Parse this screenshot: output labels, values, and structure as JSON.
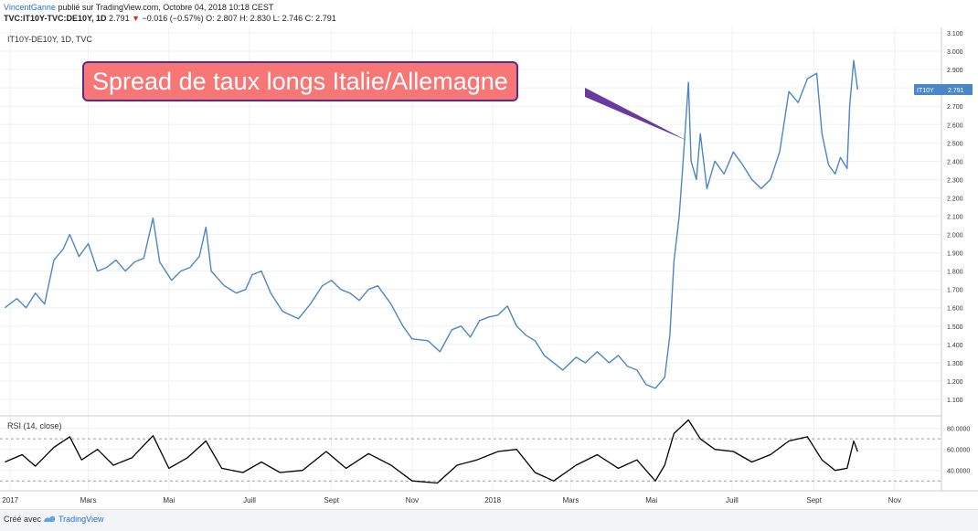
{
  "header": {
    "author": "VincentGanne",
    "published": "publié sur TradingView.com, Octobre 04, 2018 10:18 CEST",
    "symbol": "TVC:IT10Y-TVC:DE10Y, 1D",
    "last": "2.791",
    "change": "−0.016 (−0.57%)",
    "ohlc": "O: 2.807  H: 2.830  L: 2.746  C: 2.791"
  },
  "annotation": "Spread de taux longs Italie/Allemagne",
  "footer": {
    "made_with": "Créé avec",
    "brand": "TradingView"
  },
  "colors": {
    "price_line": "#4b86c6",
    "rsi_line": "#000000",
    "badge": "#4b86c6",
    "callout_fill": "#f77777",
    "callout_border": "#5a2a8f",
    "arrow": "#6a3aa0"
  },
  "chart_data": [
    {
      "type": "line",
      "title": "IT10Y-DE10Y, 1D, TVC",
      "series": [
        {
          "name": "IT10Y",
          "last_label": "2.791",
          "points": [
            [
              "2016-12-28",
              1.6
            ],
            [
              "2017-01-06",
              1.65
            ],
            [
              "2017-01-13",
              1.6
            ],
            [
              "2017-01-20",
              1.68
            ],
            [
              "2017-01-27",
              1.62
            ],
            [
              "2017-02-03",
              1.86
            ],
            [
              "2017-02-10",
              1.92
            ],
            [
              "2017-02-15",
              2.0
            ],
            [
              "2017-02-22",
              1.88
            ],
            [
              "2017-03-01",
              1.95
            ],
            [
              "2017-03-08",
              1.8
            ],
            [
              "2017-03-15",
              1.82
            ],
            [
              "2017-03-22",
              1.86
            ],
            [
              "2017-03-29",
              1.8
            ],
            [
              "2017-04-05",
              1.85
            ],
            [
              "2017-04-12",
              1.87
            ],
            [
              "2017-04-19",
              2.09
            ],
            [
              "2017-04-24",
              1.85
            ],
            [
              "2017-05-03",
              1.75
            ],
            [
              "2017-05-10",
              1.8
            ],
            [
              "2017-05-17",
              1.82
            ],
            [
              "2017-05-24",
              1.88
            ],
            [
              "2017-05-29",
              2.04
            ],
            [
              "2017-06-02",
              1.8
            ],
            [
              "2017-06-12",
              1.72
            ],
            [
              "2017-06-21",
              1.68
            ],
            [
              "2017-06-28",
              1.7
            ],
            [
              "2017-07-03",
              1.78
            ],
            [
              "2017-07-10",
              1.8
            ],
            [
              "2017-07-17",
              1.68
            ],
            [
              "2017-07-26",
              1.58
            ],
            [
              "2017-08-07",
              1.54
            ],
            [
              "2017-08-16",
              1.62
            ],
            [
              "2017-08-25",
              1.72
            ],
            [
              "2017-09-01",
              1.75
            ],
            [
              "2017-09-08",
              1.7
            ],
            [
              "2017-09-15",
              1.68
            ],
            [
              "2017-09-22",
              1.64
            ],
            [
              "2017-09-29",
              1.7
            ],
            [
              "2017-10-06",
              1.72
            ],
            [
              "2017-10-16",
              1.62
            ],
            [
              "2017-10-25",
              1.5
            ],
            [
              "2017-11-01",
              1.43
            ],
            [
              "2017-11-13",
              1.42
            ],
            [
              "2017-11-22",
              1.36
            ],
            [
              "2017-12-01",
              1.48
            ],
            [
              "2017-12-08",
              1.5
            ],
            [
              "2017-12-15",
              1.44
            ],
            [
              "2017-12-22",
              1.53
            ],
            [
              "2017-12-29",
              1.55
            ],
            [
              "2018-01-05",
              1.56
            ],
            [
              "2018-01-12",
              1.61
            ],
            [
              "2018-01-19",
              1.5
            ],
            [
              "2018-01-26",
              1.45
            ],
            [
              "2018-02-02",
              1.42
            ],
            [
              "2018-02-09",
              1.34
            ],
            [
              "2018-02-16",
              1.3
            ],
            [
              "2018-02-23",
              1.26
            ],
            [
              "2018-03-05",
              1.33
            ],
            [
              "2018-03-12",
              1.3
            ],
            [
              "2018-03-21",
              1.36
            ],
            [
              "2018-03-30",
              1.3
            ],
            [
              "2018-04-06",
              1.34
            ],
            [
              "2018-04-13",
              1.28
            ],
            [
              "2018-04-20",
              1.26
            ],
            [
              "2018-04-27",
              1.18
            ],
            [
              "2018-05-04",
              1.16
            ],
            [
              "2018-05-11",
              1.22
            ],
            [
              "2018-05-15",
              1.45
            ],
            [
              "2018-05-18",
              1.85
            ],
            [
              "2018-05-22",
              2.1
            ],
            [
              "2018-05-25",
              2.4
            ],
            [
              "2018-05-29",
              2.83
            ],
            [
              "2018-05-31",
              2.4
            ],
            [
              "2018-06-04",
              2.3
            ],
            [
              "2018-06-07",
              2.55
            ],
            [
              "2018-06-12",
              2.25
            ],
            [
              "2018-06-18",
              2.4
            ],
            [
              "2018-06-25",
              2.33
            ],
            [
              "2018-07-02",
              2.45
            ],
            [
              "2018-07-09",
              2.38
            ],
            [
              "2018-07-16",
              2.3
            ],
            [
              "2018-07-23",
              2.25
            ],
            [
              "2018-07-30",
              2.3
            ],
            [
              "2018-08-06",
              2.45
            ],
            [
              "2018-08-13",
              2.78
            ],
            [
              "2018-08-20",
              2.72
            ],
            [
              "2018-08-27",
              2.85
            ],
            [
              "2018-09-03",
              2.88
            ],
            [
              "2018-09-07",
              2.55
            ],
            [
              "2018-09-12",
              2.38
            ],
            [
              "2018-09-17",
              2.33
            ],
            [
              "2018-09-21",
              2.42
            ],
            [
              "2018-09-26",
              2.36
            ],
            [
              "2018-09-28",
              2.7
            ],
            [
              "2018-10-01",
              2.95
            ],
            [
              "2018-10-04",
              2.791
            ]
          ]
        }
      ],
      "y_ticks": [
        "1.100",
        "1.200",
        "1.300",
        "1.400",
        "1.500",
        "1.600",
        "1.700",
        "1.800",
        "1.900",
        "2.000",
        "2.100",
        "2.200",
        "2.300",
        "2.400",
        "2.500",
        "2.600",
        "2.700",
        "2.800",
        "2.900",
        "3.000",
        "3.100"
      ],
      "ylim": [
        1.05,
        3.12
      ],
      "x_ticks": [
        {
          "date": "2017-01-01",
          "label": "2017"
        },
        {
          "date": "2017-03-01",
          "label": "Mars"
        },
        {
          "date": "2017-05-01",
          "label": "Mai"
        },
        {
          "date": "2017-07-01",
          "label": "Juill"
        },
        {
          "date": "2017-09-01",
          "label": "Sept"
        },
        {
          "date": "2017-11-01",
          "label": "Nov"
        },
        {
          "date": "2018-01-01",
          "label": "2018"
        },
        {
          "date": "2018-03-01",
          "label": "Mars"
        },
        {
          "date": "2018-05-01",
          "label": "Mai"
        },
        {
          "date": "2018-07-01",
          "label": "Juill"
        },
        {
          "date": "2018-09-01",
          "label": "Sept"
        },
        {
          "date": "2018-11-01",
          "label": "Nov"
        }
      ],
      "xlim": [
        "2016-12-27",
        "2018-12-05"
      ],
      "grid": true
    },
    {
      "type": "line",
      "title": "RSI (14, close)",
      "series": [
        {
          "name": "RSI",
          "points": [
            [
              "2016-12-28",
              48
            ],
            [
              "2017-01-10",
              55
            ],
            [
              "2017-01-20",
              44
            ],
            [
              "2017-02-03",
              62
            ],
            [
              "2017-02-15",
              72
            ],
            [
              "2017-02-24",
              50
            ],
            [
              "2017-03-08",
              60
            ],
            [
              "2017-03-20",
              45
            ],
            [
              "2017-04-03",
              52
            ],
            [
              "2017-04-19",
              73
            ],
            [
              "2017-05-01",
              42
            ],
            [
              "2017-05-15",
              52
            ],
            [
              "2017-05-29",
              68
            ],
            [
              "2017-06-10",
              42
            ],
            [
              "2017-06-26",
              38
            ],
            [
              "2017-07-10",
              48
            ],
            [
              "2017-07-24",
              38
            ],
            [
              "2017-08-10",
              40
            ],
            [
              "2017-08-28",
              58
            ],
            [
              "2017-09-12",
              42
            ],
            [
              "2017-09-29",
              56
            ],
            [
              "2017-10-16",
              45
            ],
            [
              "2017-11-01",
              30
            ],
            [
              "2017-11-20",
              28
            ],
            [
              "2017-12-05",
              45
            ],
            [
              "2017-12-20",
              50
            ],
            [
              "2018-01-05",
              58
            ],
            [
              "2018-01-19",
              60
            ],
            [
              "2018-02-02",
              38
            ],
            [
              "2018-02-16",
              30
            ],
            [
              "2018-03-05",
              45
            ],
            [
              "2018-03-21",
              55
            ],
            [
              "2018-04-06",
              42
            ],
            [
              "2018-04-20",
              50
            ],
            [
              "2018-05-04",
              30
            ],
            [
              "2018-05-11",
              45
            ],
            [
              "2018-05-18",
              75
            ],
            [
              "2018-05-29",
              88
            ],
            [
              "2018-06-07",
              70
            ],
            [
              "2018-06-18",
              60
            ],
            [
              "2018-07-02",
              58
            ],
            [
              "2018-07-16",
              48
            ],
            [
              "2018-07-30",
              55
            ],
            [
              "2018-08-13",
              68
            ],
            [
              "2018-08-27",
              72
            ],
            [
              "2018-09-07",
              50
            ],
            [
              "2018-09-17",
              40
            ],
            [
              "2018-09-26",
              42
            ],
            [
              "2018-10-01",
              68
            ],
            [
              "2018-10-04",
              58
            ]
          ]
        }
      ],
      "y_ticks": [
        "40.0000",
        "60.0000",
        "80.0000"
      ],
      "ylim": [
        25,
        91
      ],
      "bands": [
        30,
        70
      ]
    }
  ]
}
